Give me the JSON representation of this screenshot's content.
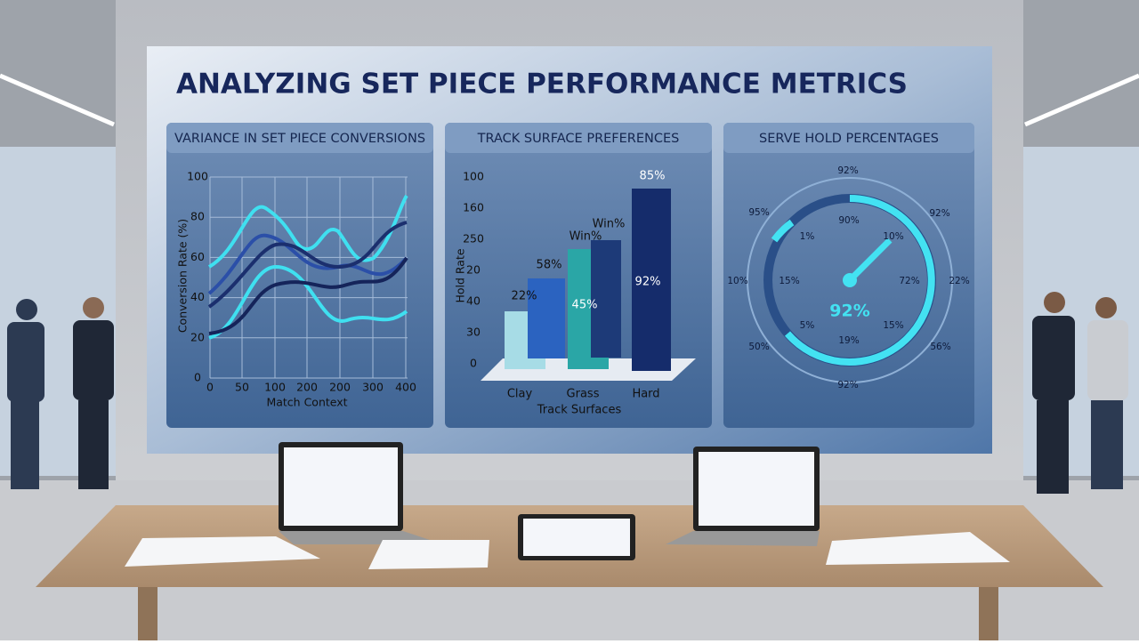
{
  "screen": {
    "title": "ANALYZING SET PIECE PERFORMANCE METRICS"
  },
  "panels": [
    {
      "title": "VARIANCE IN SET PIECE CONVERSIONS",
      "y_labels": [
        "100",
        "80",
        "60",
        "40",
        "20",
        "0"
      ],
      "x_labels": [
        "0",
        "50",
        "100",
        "200",
        "200",
        "300",
        "400"
      ],
      "y_title": "Conversion Rate (%)",
      "x_title": "Match Context"
    },
    {
      "title": "TRACK SURFACE PREFERENCES",
      "y_labels": [
        "100",
        "160",
        "250",
        "20",
        "40",
        "30",
        "0"
      ],
      "y_title": "Hold Rate",
      "bar_labels": [
        "22%",
        "58%",
        "Win%",
        "Win%",
        "85%",
        "45%",
        "92%"
      ],
      "categories": [
        "Clay",
        "Grass",
        "Hard"
      ],
      "x_title": "Track Surfaces"
    },
    {
      "title": "SERVE HOLD PERCENTAGES",
      "gauge_labels": [
        "92%",
        "95%",
        "92%",
        "1%",
        "90%",
        "10%",
        "10%",
        "15%",
        "72%",
        "22%",
        "5%",
        "15%",
        "50%",
        "19%",
        "56%",
        "92%"
      ],
      "center": "92%"
    }
  ]
}
